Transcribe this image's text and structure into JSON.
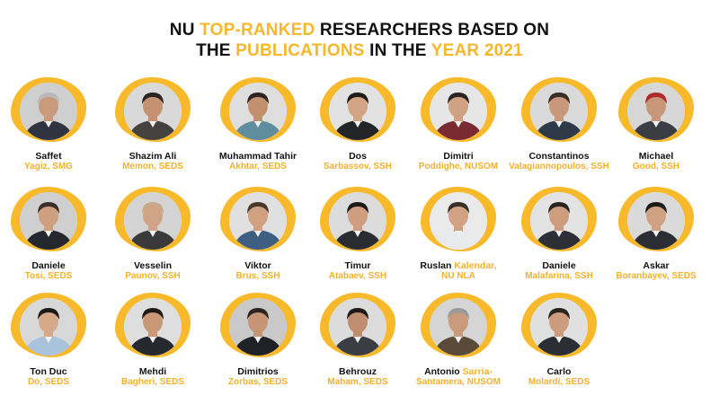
{
  "title": {
    "l1_a": "NU ",
    "l1_b": "TOP-RANKED",
    "l1_c": " RESEARCHERS BASED ON",
    "l2_a": "THE ",
    "l2_b": "PUBLICATIONS",
    "l2_c": " IN THE ",
    "l2_d": "YEAR 2021"
  },
  "colors": {
    "accent": "#f8b92a",
    "text": "#111111"
  },
  "researchers": [
    {
      "first": "Saffet",
      "last": "Yagiz, SMG",
      "bg": "#cfcfcf",
      "shirt": "#2f3540",
      "hair": "#b9b9b9",
      "skin": "#c99a7c"
    },
    {
      "first": "Shazim Ali",
      "last": "Memon, SEDS",
      "bg": "#d9d9d9",
      "shirt": "#44423f",
      "hair": "#2a2420",
      "skin": "#c49172"
    },
    {
      "first": "Muhammad Tahir",
      "last": "Akhtar, SEDS",
      "bg": "#dedede",
      "shirt": "#5f8c9e",
      "hair": "#2b2420",
      "skin": "#c2906f"
    },
    {
      "first": "Dos",
      "last": "Sarbassov, SSH",
      "bg": "#e2e2e2",
      "shirt": "#222428",
      "hair": "#1f1b18",
      "skin": "#d3a585"
    },
    {
      "first": "Dimitri",
      "last": "Poddighe, NUSOM",
      "bg": "#e6e6e6",
      "shirt": "#7a2a32",
      "hair": "#2b2420",
      "skin": "#cfa282"
    },
    {
      "first": "Constantinos",
      "last": "Valagiannopoulos, SSH",
      "bg": "#dadada",
      "shirt": "#2f3a48",
      "hair": "#3a2d24",
      "skin": "#c9987a"
    },
    {
      "first": "Michael",
      "last": "Good, SSH",
      "bg": "#d7d7d7",
      "shirt": "#3a3d44",
      "hair": "#b02a2a",
      "skin": "#c89678"
    },
    {
      "first": "Daniele",
      "last": "Tosi, SEDS",
      "bg": "#cfcfcf",
      "shirt": "#24272c",
      "hair": "#3b2f28",
      "skin": "#cf9f80"
    },
    {
      "first": "Vesselin",
      "last": "Paunov, SSH",
      "bg": "#d4d4d4",
      "shirt": "#3a3a3a",
      "hair": "#c9a98c",
      "skin": "#d2a487"
    },
    {
      "first": "Viktor",
      "last": "Brus, SSH",
      "bg": "#e0e0e0",
      "shirt": "#3e5f82",
      "hair": "#4a3828",
      "skin": "#d0a080"
    },
    {
      "first": "Timur",
      "last": "Atabaev, SSH",
      "bg": "#dcdcdc",
      "shirt": "#2a2c31",
      "hair": "#1d1a18",
      "skin": "#cf9e80"
    },
    {
      "first": "Ruslan ",
      "first_hl": "Kalendar,",
      "last": "NU NLA",
      "bg": "#eaeaea",
      "shirt": "#e8eaee",
      "hair": "#3a2f26",
      "skin": "#d1a384"
    },
    {
      "first": "Daniele",
      "last": "Malafarina, SSH",
      "bg": "#e3e3e3",
      "shirt": "#2c2f35",
      "hair": "#2a231e",
      "skin": "#cd9d7e"
    },
    {
      "first": "Askar",
      "last": "Boranbayev, SEDS",
      "bg": "#dadada",
      "shirt": "#2a2d33",
      "hair": "#1f1b18",
      "skin": "#d0a183"
    },
    {
      "first": "Ton Duc",
      "last": "Do, SEDS",
      "bg": "#d8d8d8",
      "shirt": "#a9c3dd",
      "hair": "#1e1a17",
      "skin": "#d6aa88"
    },
    {
      "first": "Mehdi",
      "last": "Bagheri, SEDS",
      "bg": "#dedede",
      "shirt": "#25282e",
      "hair": "#1e1a17",
      "skin": "#c99876"
    },
    {
      "first": "Dimitrios",
      "last": "Zorbas, SEDS",
      "bg": "#c9c9c9",
      "shirt": "#1f2126",
      "hair": "#2b2420",
      "skin": "#c69575"
    },
    {
      "first": "Behrouz",
      "last": "Maham, SEDS",
      "bg": "#dcdcdc",
      "shirt": "#3a3d44",
      "hair": "#1d1a18",
      "skin": "#c08e6e"
    },
    {
      "first": "Antonio ",
      "first_hl": "Sarria-",
      "last": "Santamera, NUSOM",
      "bg": "#d5d5d5",
      "shirt": "#5a4a3a",
      "hair": "#9a9a9a",
      "skin": "#c99b7c"
    },
    {
      "first": "Carlo",
      "last": "Molardi, SEDS",
      "bg": "#e0e0e0",
      "shirt": "#2b2e35",
      "hair": "#2a231e",
      "skin": "#cc9c7d"
    }
  ]
}
